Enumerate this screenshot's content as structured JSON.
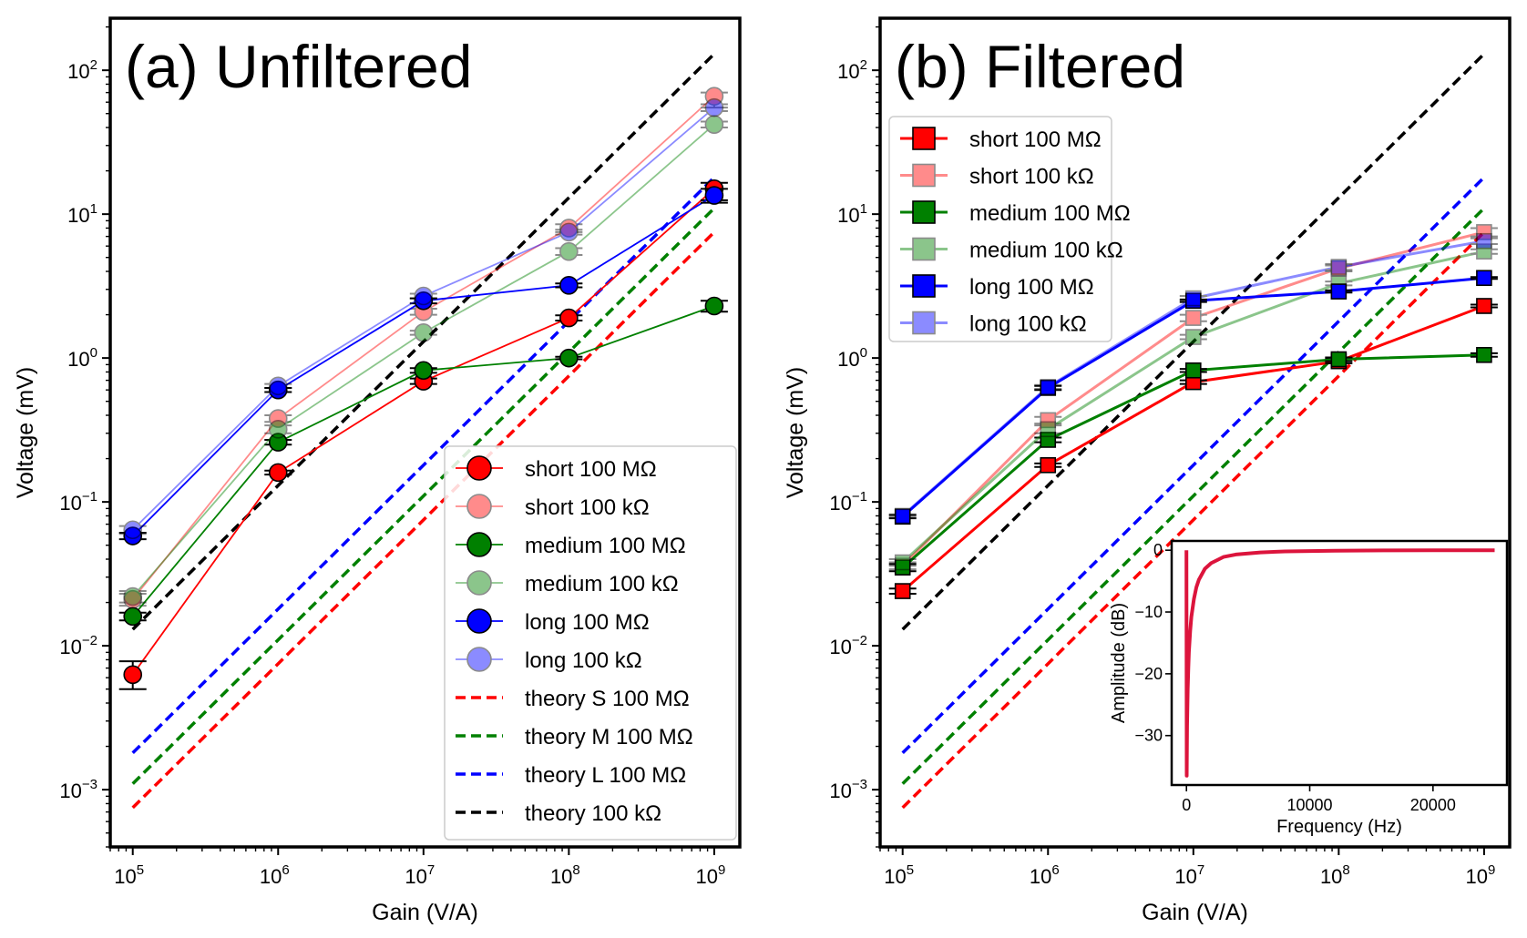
{
  "chart_data": [
    {
      "type": "line",
      "title": "(a) Unfiltered",
      "xlabel": "Gain (V/A)",
      "ylabel": "Voltage (mV)",
      "xscale": "log",
      "yscale": "log",
      "xlim": [
        70000,
        1500000000
      ],
      "ylim": [
        0.0004,
        230
      ],
      "x_ticks": [
        {
          "base": "10",
          "exp": "5"
        },
        {
          "base": "10",
          "exp": "6"
        },
        {
          "base": "10",
          "exp": "7"
        },
        {
          "base": "10",
          "exp": "8"
        },
        {
          "base": "10",
          "exp": "9"
        }
      ],
      "y_ticks": [
        {
          "base": "10",
          "exp": "−3"
        },
        {
          "base": "10",
          "exp": "−2"
        },
        {
          "base": "10",
          "exp": "−1"
        },
        {
          "base": "10",
          "exp": "0"
        },
        {
          "base": "10",
          "exp": "1"
        },
        {
          "base": "10",
          "exp": "2"
        }
      ],
      "legend_position": "lower-right",
      "marker": "circle",
      "x": [
        100000,
        1000000,
        10000000,
        100000000,
        1000000000
      ],
      "series": [
        {
          "name": "short 100 MΩ",
          "color": "#ff0000",
          "alpha": 1.0,
          "values": [
            0.0063,
            0.16,
            0.69,
            1.9,
            15.0
          ],
          "err_low": [
            0.005,
            0.155,
            0.66,
            1.82,
            12.5
          ],
          "err_high": [
            0.0078,
            0.165,
            0.72,
            1.98,
            16.5
          ]
        },
        {
          "name": "short 100 kΩ",
          "color": "#ff0000",
          "alpha": 0.45,
          "values": [
            0.021,
            0.38,
            2.1,
            8.0,
            66.0
          ],
          "err_low": [
            0.019,
            0.36,
            2.0,
            7.5,
            55.0
          ],
          "err_high": [
            0.023,
            0.4,
            2.2,
            8.5,
            70.0
          ]
        },
        {
          "name": "medium 100 MΩ",
          "color": "#008000",
          "alpha": 1.0,
          "values": [
            0.016,
            0.26,
            0.82,
            1.0,
            2.3
          ],
          "err_low": [
            0.015,
            0.25,
            0.79,
            0.98,
            2.1
          ],
          "err_high": [
            0.017,
            0.27,
            0.85,
            1.02,
            2.5
          ]
        },
        {
          "name": "medium 100 kΩ",
          "color": "#008000",
          "alpha": 0.45,
          "values": [
            0.022,
            0.32,
            1.5,
            5.5,
            42.0
          ],
          "err_low": [
            0.02,
            0.3,
            1.45,
            5.2,
            40.0
          ],
          "err_high": [
            0.024,
            0.34,
            1.55,
            5.8,
            44.0
          ]
        },
        {
          "name": "long 100 MΩ",
          "color": "#0000ff",
          "alpha": 1.0,
          "values": [
            0.058,
            0.6,
            2.5,
            3.2,
            13.5
          ],
          "err_low": [
            0.055,
            0.58,
            2.4,
            3.1,
            12.0
          ],
          "err_high": [
            0.061,
            0.62,
            2.6,
            3.3,
            15.0
          ]
        },
        {
          "name": "long 100 kΩ",
          "color": "#0000ff",
          "alpha": 0.45,
          "values": [
            0.064,
            0.64,
            2.7,
            7.5,
            55.0
          ],
          "err_low": [
            0.06,
            0.62,
            2.6,
            7.2,
            52.0
          ],
          "err_high": [
            0.068,
            0.66,
            2.8,
            7.8,
            58.0
          ]
        }
      ],
      "theory": [
        {
          "name": "theory S 100 MΩ",
          "color": "#ff0000",
          "x": [
            100000,
            1000000000
          ],
          "values": [
            0.00075,
            7.5
          ]
        },
        {
          "name": "theory M 100 MΩ",
          "color": "#008000",
          "x": [
            100000,
            1000000000
          ],
          "values": [
            0.0011,
            11.0
          ]
        },
        {
          "name": "theory L 100 MΩ",
          "color": "#0000ff",
          "x": [
            100000,
            1000000000
          ],
          "values": [
            0.0018,
            18.0
          ]
        },
        {
          "name": "theory 100 kΩ",
          "color": "#000000",
          "x": [
            100000,
            1000000000
          ],
          "values": [
            0.013,
            130.0
          ]
        }
      ]
    },
    {
      "type": "line",
      "title": "(b) Filtered",
      "xlabel": "Gain (V/A)",
      "ylabel": "Voltage (mV)",
      "xscale": "log",
      "yscale": "log",
      "xlim": [
        70000,
        1500000000
      ],
      "ylim": [
        0.0004,
        230
      ],
      "x_ticks": [
        {
          "base": "10",
          "exp": "5"
        },
        {
          "base": "10",
          "exp": "6"
        },
        {
          "base": "10",
          "exp": "7"
        },
        {
          "base": "10",
          "exp": "8"
        },
        {
          "base": "10",
          "exp": "9"
        }
      ],
      "y_ticks": [
        {
          "base": "10",
          "exp": "−3"
        },
        {
          "base": "10",
          "exp": "−2"
        },
        {
          "base": "10",
          "exp": "−1"
        },
        {
          "base": "10",
          "exp": "0"
        },
        {
          "base": "10",
          "exp": "1"
        },
        {
          "base": "10",
          "exp": "2"
        }
      ],
      "legend_position": "upper-left",
      "marker": "square",
      "x": [
        100000,
        1000000,
        10000000,
        100000000,
        1000000000
      ],
      "series": [
        {
          "name": "short 100 MΩ",
          "color": "#ff0000",
          "alpha": 1.0,
          "values": [
            0.024,
            0.18,
            0.68,
            0.95,
            2.3
          ],
          "err_low": [
            0.023,
            0.175,
            0.66,
            0.92,
            2.25
          ],
          "err_high": [
            0.025,
            0.185,
            0.7,
            0.98,
            2.35
          ]
        },
        {
          "name": "short 100 kΩ",
          "color": "#ff0000",
          "alpha": 0.45,
          "values": [
            0.036,
            0.37,
            1.9,
            4.2,
            7.5
          ],
          "err_low": [
            0.034,
            0.35,
            1.8,
            4.0,
            7.0
          ],
          "err_high": [
            0.038,
            0.39,
            2.0,
            4.4,
            8.0
          ]
        },
        {
          "name": "medium 100 MΩ",
          "color": "#008000",
          "alpha": 1.0,
          "values": [
            0.035,
            0.27,
            0.82,
            0.98,
            1.05
          ],
          "err_low": [
            0.033,
            0.26,
            0.8,
            0.95,
            1.02
          ],
          "err_high": [
            0.037,
            0.28,
            0.84,
            1.01,
            1.08
          ]
        },
        {
          "name": "medium 100 kΩ",
          "color": "#008000",
          "alpha": 0.45,
          "values": [
            0.038,
            0.32,
            1.4,
            3.3,
            5.5
          ],
          "err_low": [
            0.036,
            0.3,
            1.35,
            3.2,
            5.3
          ],
          "err_high": [
            0.04,
            0.34,
            1.45,
            3.4,
            5.7
          ]
        },
        {
          "name": "long 100 MΩ",
          "color": "#0000ff",
          "alpha": 1.0,
          "values": [
            0.079,
            0.62,
            2.5,
            2.9,
            3.6
          ],
          "err_low": [
            0.077,
            0.6,
            2.45,
            2.85,
            3.55
          ],
          "err_high": [
            0.081,
            0.64,
            2.55,
            2.95,
            3.65
          ]
        },
        {
          "name": "long 100 kΩ",
          "color": "#0000ff",
          "alpha": 0.45,
          "values": [
            0.08,
            0.63,
            2.6,
            4.3,
            6.5
          ],
          "err_low": [
            0.078,
            0.61,
            2.5,
            4.1,
            6.2
          ],
          "err_high": [
            0.082,
            0.65,
            2.7,
            4.5,
            6.8
          ]
        }
      ],
      "theory": [
        {
          "name": "",
          "color": "#ff0000",
          "x": [
            100000,
            1000000000
          ],
          "values": [
            0.00075,
            7.5
          ]
        },
        {
          "name": "",
          "color": "#008000",
          "x": [
            100000,
            1000000000
          ],
          "values": [
            0.0011,
            11.0
          ]
        },
        {
          "name": "",
          "color": "#0000ff",
          "x": [
            100000,
            1000000000
          ],
          "values": [
            0.0018,
            18.0
          ]
        },
        {
          "name": "",
          "color": "#000000",
          "x": [
            100000,
            1000000000
          ],
          "values": [
            0.013,
            130.0
          ]
        }
      ],
      "inset": {
        "type": "line",
        "xlabel": "Frequency (Hz)",
        "ylabel": "Amplitude (dB)",
        "xlim": [
          -1200,
          26000
        ],
        "ylim": [
          -38,
          1.5
        ],
        "x_ticks": [
          0,
          10000,
          20000
        ],
        "y_ticks": [
          0,
          -10,
          -20,
          -30
        ],
        "x_tick_labels": [
          "0",
          "10000",
          "20000"
        ],
        "y_tick_labels": [
          "0",
          "−10",
          "−20",
          "−30"
        ],
        "color": "#dc143c",
        "x": [
          0,
          20,
          50,
          100,
          150,
          200,
          300,
          400,
          600,
          800,
          1000,
          1500,
          2000,
          3000,
          4000,
          6000,
          8000,
          12000,
          16000,
          20000,
          25000
        ],
        "values": [
          0,
          -36.5,
          -28.5,
          -22.5,
          -19.0,
          -16.5,
          -13.1,
          -10.8,
          -7.9,
          -6.0,
          -4.8,
          -3.0,
          -2.1,
          -1.1,
          -0.7,
          -0.35,
          -0.2,
          -0.08,
          -0.04,
          -0.02,
          0
        ]
      }
    }
  ]
}
